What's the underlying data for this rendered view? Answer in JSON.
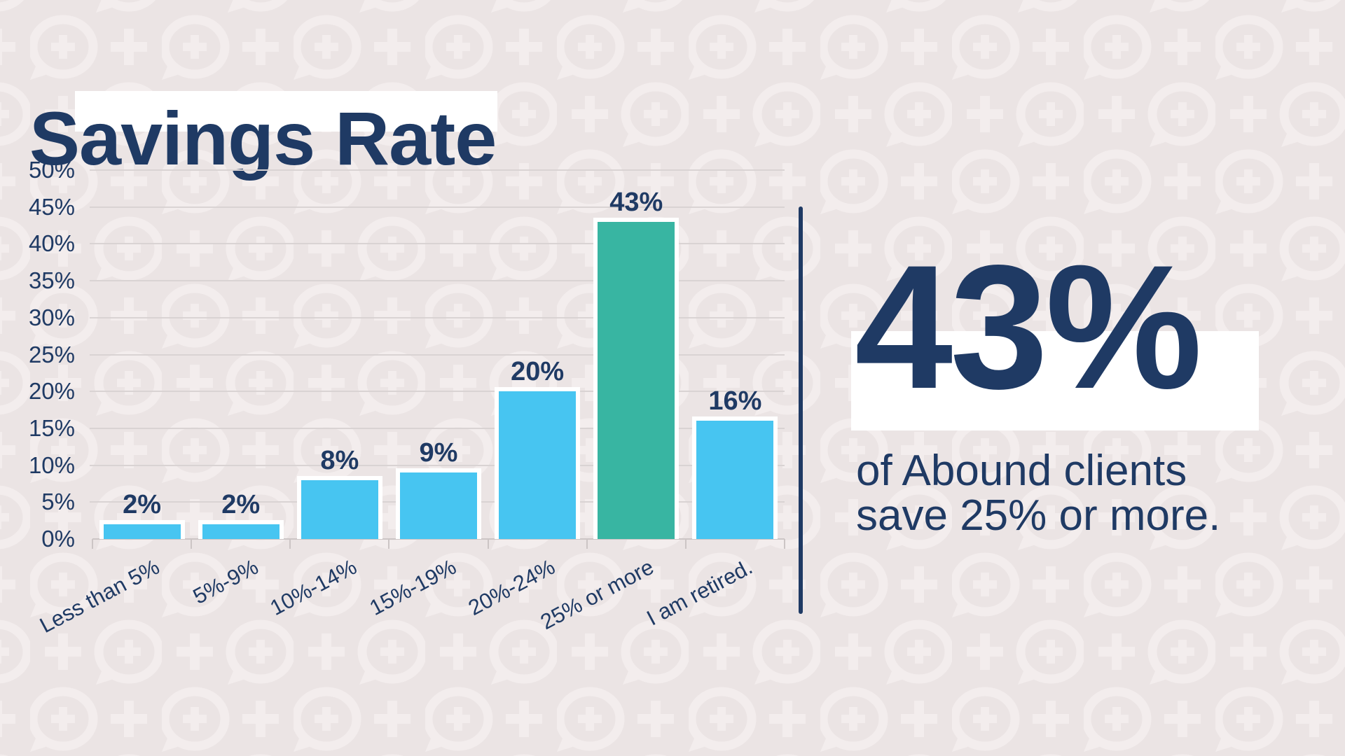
{
  "title": "Savings Rate",
  "stat": {
    "value": "43%",
    "description": "of Abound clients\nsave 25% or more."
  },
  "chart_data": {
    "type": "bar",
    "title": "Savings Rate",
    "categories": [
      "Less than 5%",
      "5%-9%",
      "10%-14%",
      "15%-19%",
      "20%-24%",
      "25% or more",
      "I am retired."
    ],
    "values": [
      2,
      2,
      8,
      9,
      20,
      43,
      16
    ],
    "value_labels": [
      "2%",
      "2%",
      "8%",
      "9%",
      "20%",
      "43%",
      "16%"
    ],
    "highlight_index": 5,
    "highlight_category": "25% or more",
    "xlabel": "",
    "ylabel": "",
    "ylim": [
      0,
      50
    ],
    "ytick_step": 5,
    "ytick_labels": [
      "0%",
      "5%",
      "10%",
      "15%",
      "20%",
      "25%",
      "30%",
      "35%",
      "40%",
      "45%",
      "50%"
    ],
    "grid": true,
    "legend": false,
    "bar_color": "#47c5f1",
    "highlight_color": "#38b5a2",
    "label_color": "#1f3a64"
  },
  "colors": {
    "navy": "#1f3a64",
    "bar_blue": "#47c5f1",
    "bar_teal": "#38b5a2",
    "background": "#ebe4e4",
    "pattern": "#f3eded",
    "gridline": "#d9d3d3",
    "highlight_box": "#ffffff"
  },
  "background": {
    "pattern_icon": "speech-bubble-plus-icon"
  }
}
